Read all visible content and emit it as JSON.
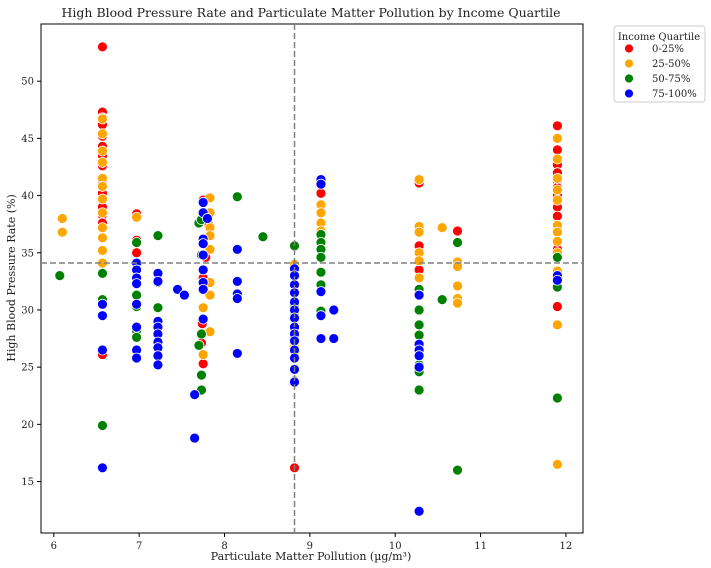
{
  "chart_data": {
    "type": "scatter",
    "title": "High Blood Pressure Rate and Particulate Matter Pollution by Income Quartile",
    "xlabel": "Particulate Matter Pollution (µg/m³)",
    "ylabel": "High Blood Pressure Rate (%)",
    "xlim": [
      5.85,
      12.2
    ],
    "ylim": [
      10.5,
      55
    ],
    "xticks": [
      6,
      7,
      8,
      9,
      10,
      11,
      12
    ],
    "yticks": [
      15,
      20,
      25,
      30,
      35,
      40,
      45,
      50
    ],
    "reference_lines": {
      "x_mean": 8.82,
      "y_mean": 34.1,
      "style": "dashed",
      "color": "#808080"
    },
    "legend": {
      "title": "Income Quartile",
      "placement": "outside-right"
    },
    "grid": false,
    "series": [
      {
        "name": "0-25%",
        "color": "#ff0000",
        "points": [
          [
            6.57,
            53.0
          ],
          [
            6.57,
            47.3
          ],
          [
            6.57,
            46.8
          ],
          [
            6.57,
            46.2
          ],
          [
            6.57,
            45.2
          ],
          [
            6.57,
            44.3
          ],
          [
            6.57,
            43.5
          ],
          [
            6.57,
            42.6
          ],
          [
            6.57,
            41.3
          ],
          [
            6.57,
            40.2
          ],
          [
            6.57,
            39.0
          ],
          [
            6.57,
            38.3
          ],
          [
            6.57,
            37.6
          ],
          [
            6.57,
            26.1
          ],
          [
            6.97,
            38.4
          ],
          [
            6.97,
            36.1
          ],
          [
            6.97,
            35.0
          ],
          [
            7.75,
            39.6
          ],
          [
            7.82,
            37.4
          ],
          [
            7.78,
            34.6
          ],
          [
            7.75,
            32.8
          ],
          [
            7.74,
            28.8
          ],
          [
            7.73,
            27.1
          ],
          [
            7.75,
            25.3
          ],
          [
            8.82,
            16.2
          ],
          [
            9.13,
            41.2
          ],
          [
            9.13,
            40.2
          ],
          [
            10.28,
            41.1
          ],
          [
            10.28,
            35.6
          ],
          [
            10.28,
            33.5
          ],
          [
            10.73,
            36.9
          ],
          [
            11.9,
            46.1
          ],
          [
            11.9,
            44.0
          ],
          [
            11.9,
            42.7
          ],
          [
            11.9,
            42.0
          ],
          [
            11.9,
            41.3
          ],
          [
            11.9,
            40.7
          ],
          [
            11.9,
            40.0
          ],
          [
            11.9,
            39.0
          ],
          [
            11.9,
            38.2
          ],
          [
            11.9,
            37.0
          ],
          [
            11.9,
            35.3
          ],
          [
            11.9,
            30.3
          ]
        ]
      },
      {
        "name": "25-50%",
        "color": "#ffa500",
        "points": [
          [
            6.1,
            38.0
          ],
          [
            6.1,
            36.8
          ],
          [
            6.57,
            46.7
          ],
          [
            6.57,
            45.4
          ],
          [
            6.57,
            43.9
          ],
          [
            6.57,
            42.9
          ],
          [
            6.57,
            41.5
          ],
          [
            6.57,
            40.8
          ],
          [
            6.57,
            39.7
          ],
          [
            6.57,
            38.5
          ],
          [
            6.57,
            37.2
          ],
          [
            6.57,
            36.3
          ],
          [
            6.57,
            35.2
          ],
          [
            6.57,
            34.1
          ],
          [
            6.97,
            38.1
          ],
          [
            6.97,
            28.1
          ],
          [
            7.83,
            39.8
          ],
          [
            7.83,
            38.5
          ],
          [
            7.83,
            37.2
          ],
          [
            7.83,
            36.5
          ],
          [
            7.83,
            35.3
          ],
          [
            7.83,
            32.4
          ],
          [
            7.83,
            31.3
          ],
          [
            7.83,
            28.1
          ],
          [
            7.75,
            30.2
          ],
          [
            7.75,
            26.1
          ],
          [
            8.82,
            34.0
          ],
          [
            8.82,
            28.5
          ],
          [
            8.82,
            26.8
          ],
          [
            9.13,
            39.2
          ],
          [
            9.13,
            38.5
          ],
          [
            9.13,
            37.6
          ],
          [
            9.13,
            36.9
          ],
          [
            10.28,
            41.4
          ],
          [
            10.28,
            37.3
          ],
          [
            10.28,
            36.8
          ],
          [
            10.28,
            35.0
          ],
          [
            10.28,
            34.3
          ],
          [
            10.28,
            32.8
          ],
          [
            10.55,
            37.2
          ],
          [
            10.73,
            34.2
          ],
          [
            10.73,
            33.8
          ],
          [
            10.73,
            32.1
          ],
          [
            10.73,
            31.0
          ],
          [
            10.73,
            30.6
          ],
          [
            11.9,
            45.0
          ],
          [
            11.9,
            43.2
          ],
          [
            11.9,
            41.5
          ],
          [
            11.9,
            40.5
          ],
          [
            11.9,
            39.6
          ],
          [
            11.9,
            37.4
          ],
          [
            11.9,
            36.8
          ],
          [
            11.9,
            36.0
          ],
          [
            11.9,
            35.0
          ],
          [
            11.9,
            33.4
          ],
          [
            11.9,
            28.7
          ],
          [
            11.9,
            16.5
          ]
        ]
      },
      {
        "name": "50-75%",
        "color": "#008000",
        "points": [
          [
            6.07,
            33.0
          ],
          [
            6.57,
            33.2
          ],
          [
            6.57,
            30.9
          ],
          [
            6.57,
            19.9
          ],
          [
            6.97,
            35.9
          ],
          [
            6.97,
            31.3
          ],
          [
            6.97,
            30.3
          ],
          [
            6.97,
            28.2
          ],
          [
            6.97,
            27.6
          ],
          [
            7.22,
            36.5
          ],
          [
            7.22,
            32.4
          ],
          [
            7.22,
            30.2
          ],
          [
            7.7,
            37.6
          ],
          [
            7.73,
            37.9
          ],
          [
            7.73,
            34.8
          ],
          [
            7.73,
            27.9
          ],
          [
            7.73,
            24.3
          ],
          [
            7.73,
            23.0
          ],
          [
            7.7,
            26.9
          ],
          [
            8.15,
            39.9
          ],
          [
            8.45,
            36.4
          ],
          [
            8.82,
            35.6
          ],
          [
            8.82,
            33.2
          ],
          [
            8.82,
            30.4
          ],
          [
            8.82,
            29.5
          ],
          [
            8.82,
            27.6
          ],
          [
            8.82,
            23.8
          ],
          [
            9.13,
            36.6
          ],
          [
            9.13,
            35.9
          ],
          [
            9.13,
            35.3
          ],
          [
            9.13,
            34.6
          ],
          [
            9.13,
            33.3
          ],
          [
            9.13,
            32.2
          ],
          [
            9.13,
            29.9
          ],
          [
            10.28,
            31.8
          ],
          [
            10.28,
            30.0
          ],
          [
            10.28,
            28.7
          ],
          [
            10.28,
            27.8
          ],
          [
            10.28,
            25.2
          ],
          [
            10.28,
            24.6
          ],
          [
            10.28,
            23.0
          ],
          [
            10.55,
            30.9
          ],
          [
            10.73,
            35.9
          ],
          [
            10.73,
            16.0
          ],
          [
            11.9,
            34.6
          ],
          [
            11.9,
            32.0
          ],
          [
            11.9,
            22.3
          ]
        ]
      },
      {
        "name": "75-100%",
        "color": "#0000ff",
        "points": [
          [
            6.57,
            30.5
          ],
          [
            6.57,
            29.5
          ],
          [
            6.57,
            26.5
          ],
          [
            6.57,
            16.2
          ],
          [
            6.97,
            34.1
          ],
          [
            6.97,
            33.5
          ],
          [
            6.97,
            32.8
          ],
          [
            6.97,
            32.3
          ],
          [
            6.97,
            30.5
          ],
          [
            6.97,
            28.5
          ],
          [
            6.97,
            26.5
          ],
          [
            6.97,
            25.8
          ],
          [
            7.22,
            33.2
          ],
          [
            7.22,
            32.5
          ],
          [
            7.22,
            29.0
          ],
          [
            7.22,
            28.5
          ],
          [
            7.22,
            27.9
          ],
          [
            7.22,
            27.2
          ],
          [
            7.22,
            26.7
          ],
          [
            7.22,
            26.0
          ],
          [
            7.22,
            25.2
          ],
          [
            7.45,
            31.8
          ],
          [
            7.53,
            31.3
          ],
          [
            7.65,
            22.6
          ],
          [
            7.65,
            18.8
          ],
          [
            7.75,
            39.4
          ],
          [
            7.75,
            38.5
          ],
          [
            7.75,
            36.2
          ],
          [
            7.75,
            35.8
          ],
          [
            7.75,
            34.8
          ],
          [
            7.75,
            33.5
          ],
          [
            7.75,
            32.4
          ],
          [
            7.75,
            31.8
          ],
          [
            7.75,
            29.2
          ],
          [
            7.8,
            38.0
          ],
          [
            8.15,
            35.3
          ],
          [
            8.15,
            32.5
          ],
          [
            8.15,
            31.4
          ],
          [
            8.15,
            31.0
          ],
          [
            8.15,
            26.2
          ],
          [
            8.82,
            33.6
          ],
          [
            8.82,
            33.0
          ],
          [
            8.82,
            32.2
          ],
          [
            8.82,
            31.5
          ],
          [
            8.82,
            30.7
          ],
          [
            8.82,
            30.0
          ],
          [
            8.82,
            29.3
          ],
          [
            8.82,
            28.5
          ],
          [
            8.82,
            27.9
          ],
          [
            8.82,
            27.3
          ],
          [
            8.82,
            26.5
          ],
          [
            8.82,
            25.8
          ],
          [
            8.82,
            24.8
          ],
          [
            8.82,
            23.7
          ],
          [
            9.13,
            41.4
          ],
          [
            9.13,
            41.0
          ],
          [
            9.13,
            31.6
          ],
          [
            9.13,
            29.5
          ],
          [
            9.13,
            27.5
          ],
          [
            9.28,
            30.0
          ],
          [
            9.28,
            27.5
          ],
          [
            10.28,
            31.3
          ],
          [
            10.28,
            27.0
          ],
          [
            10.28,
            26.5
          ],
          [
            10.28,
            26.0
          ],
          [
            10.28,
            25.0
          ],
          [
            10.28,
            12.4
          ],
          [
            11.9,
            33.0
          ],
          [
            11.9,
            32.6
          ]
        ]
      }
    ]
  }
}
